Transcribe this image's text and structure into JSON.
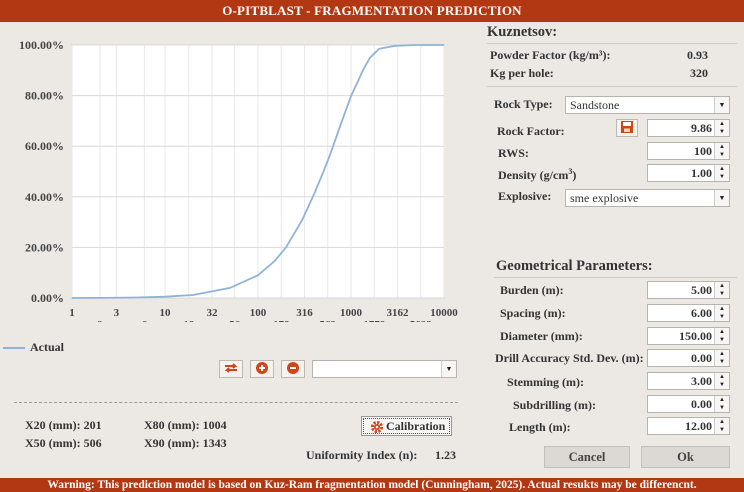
{
  "window": {
    "title": "O-PITBLAST - FRAGMENTATION PREDICTION",
    "warning": "Warning: This prediction model is based on Kuz-Ram fragmentation model (Cunningham, 2025). Actual resukts may be differencnt."
  },
  "kuznetsov": {
    "title": "Kuznetsov:",
    "powder_factor_label": "Powder Factor (kg/m³):",
    "powder_factor": "0.93",
    "kg_per_hole_label": "Kg per hole:",
    "kg_per_hole": "320"
  },
  "rock": {
    "rock_type_label": "Rock Type:",
    "rock_type": "Sandstone",
    "rock_factor_label": "Rock Factor:",
    "rock_factor": "9.86",
    "rws_label": "RWS:",
    "rws": "100",
    "density_label": "Density (g/cm",
    "density_sup": "3",
    "density_close": ")",
    "density": "1.00",
    "explosive_label": "Explosive:",
    "explosive": "sme explosive"
  },
  "geometry": {
    "title": "Geometrical Parameters:",
    "burden_label": "Burden (m):",
    "burden": "5.00",
    "spacing_label": "Spacing (m):",
    "spacing": "6.00",
    "diameter_label": "Diameter (mm):",
    "diameter": "150.00",
    "drill_label": "Drill Accuracy Std. Dev. (m):",
    "drill": "0.00",
    "stemming_label": "Stemming (m):",
    "stemming": "3.00",
    "subdrilling_label": "Subdrilling (m):",
    "subdrilling": "0.00",
    "length_label": "Length (m):",
    "length": "12.00"
  },
  "buttons": {
    "cancel": "Cancel",
    "ok": "Ok",
    "calibration": "Calibration"
  },
  "results": {
    "x20": "X20 (mm): 201",
    "x50": "X50 (mm): 506",
    "x80": "X80 (mm): 1004",
    "x90": "X90 (mm): 1343",
    "uniformity_label": "Uniformity Index (n):",
    "uniformity": "1.23"
  },
  "icons": {
    "save": "save-icon",
    "swap": "swap-icon",
    "add": "plus-icon",
    "remove": "minus-icon",
    "calibration": "gear-icon"
  },
  "colors": {
    "title_bar": "#b13813",
    "curve": "#8fb3d8",
    "background": "#ece9e4"
  },
  "chart_data": {
    "type": "line",
    "x_scale": "log",
    "xlim": [
      1,
      10000
    ],
    "ylim": [
      0,
      100
    ],
    "x_ticks_top": [
      "1",
      "3",
      "10",
      "32",
      "100",
      "316",
      "1000",
      "3162",
      "10000"
    ],
    "x_ticks_top_values": [
      1,
      3,
      10,
      32,
      100,
      316,
      1000,
      3162,
      10000
    ],
    "x_ticks_bottom": [
      "2",
      "6",
      "18",
      "56",
      "178",
      "562",
      "1778",
      "5623"
    ],
    "x_ticks_bottom_values": [
      2,
      6,
      18,
      56,
      178,
      562,
      1778,
      5623
    ],
    "y_ticks": [
      "0.00%",
      "20.00%",
      "40.00%",
      "60.00%",
      "80.00%",
      "100.00%"
    ],
    "y_tick_values": [
      0,
      20,
      40,
      60,
      80,
      100
    ],
    "grid": true,
    "legend": "bottom-left",
    "series": [
      {
        "name": "Actual",
        "color": "#8fb3d8",
        "x": [
          1,
          2,
          5,
          10,
          20,
          50,
          100,
          150,
          200,
          300,
          400,
          506,
          600,
          800,
          1004,
          1200,
          1343,
          1600,
          2000,
          3000,
          5000,
          10000
        ],
        "y": [
          0,
          0.04,
          0.2,
          0.5,
          1.2,
          4,
          9,
          14.5,
          20,
          31,
          41,
          50,
          57,
          70,
          80,
          86,
          90,
          95,
          98.5,
          99.7,
          100,
          100
        ]
      }
    ]
  }
}
